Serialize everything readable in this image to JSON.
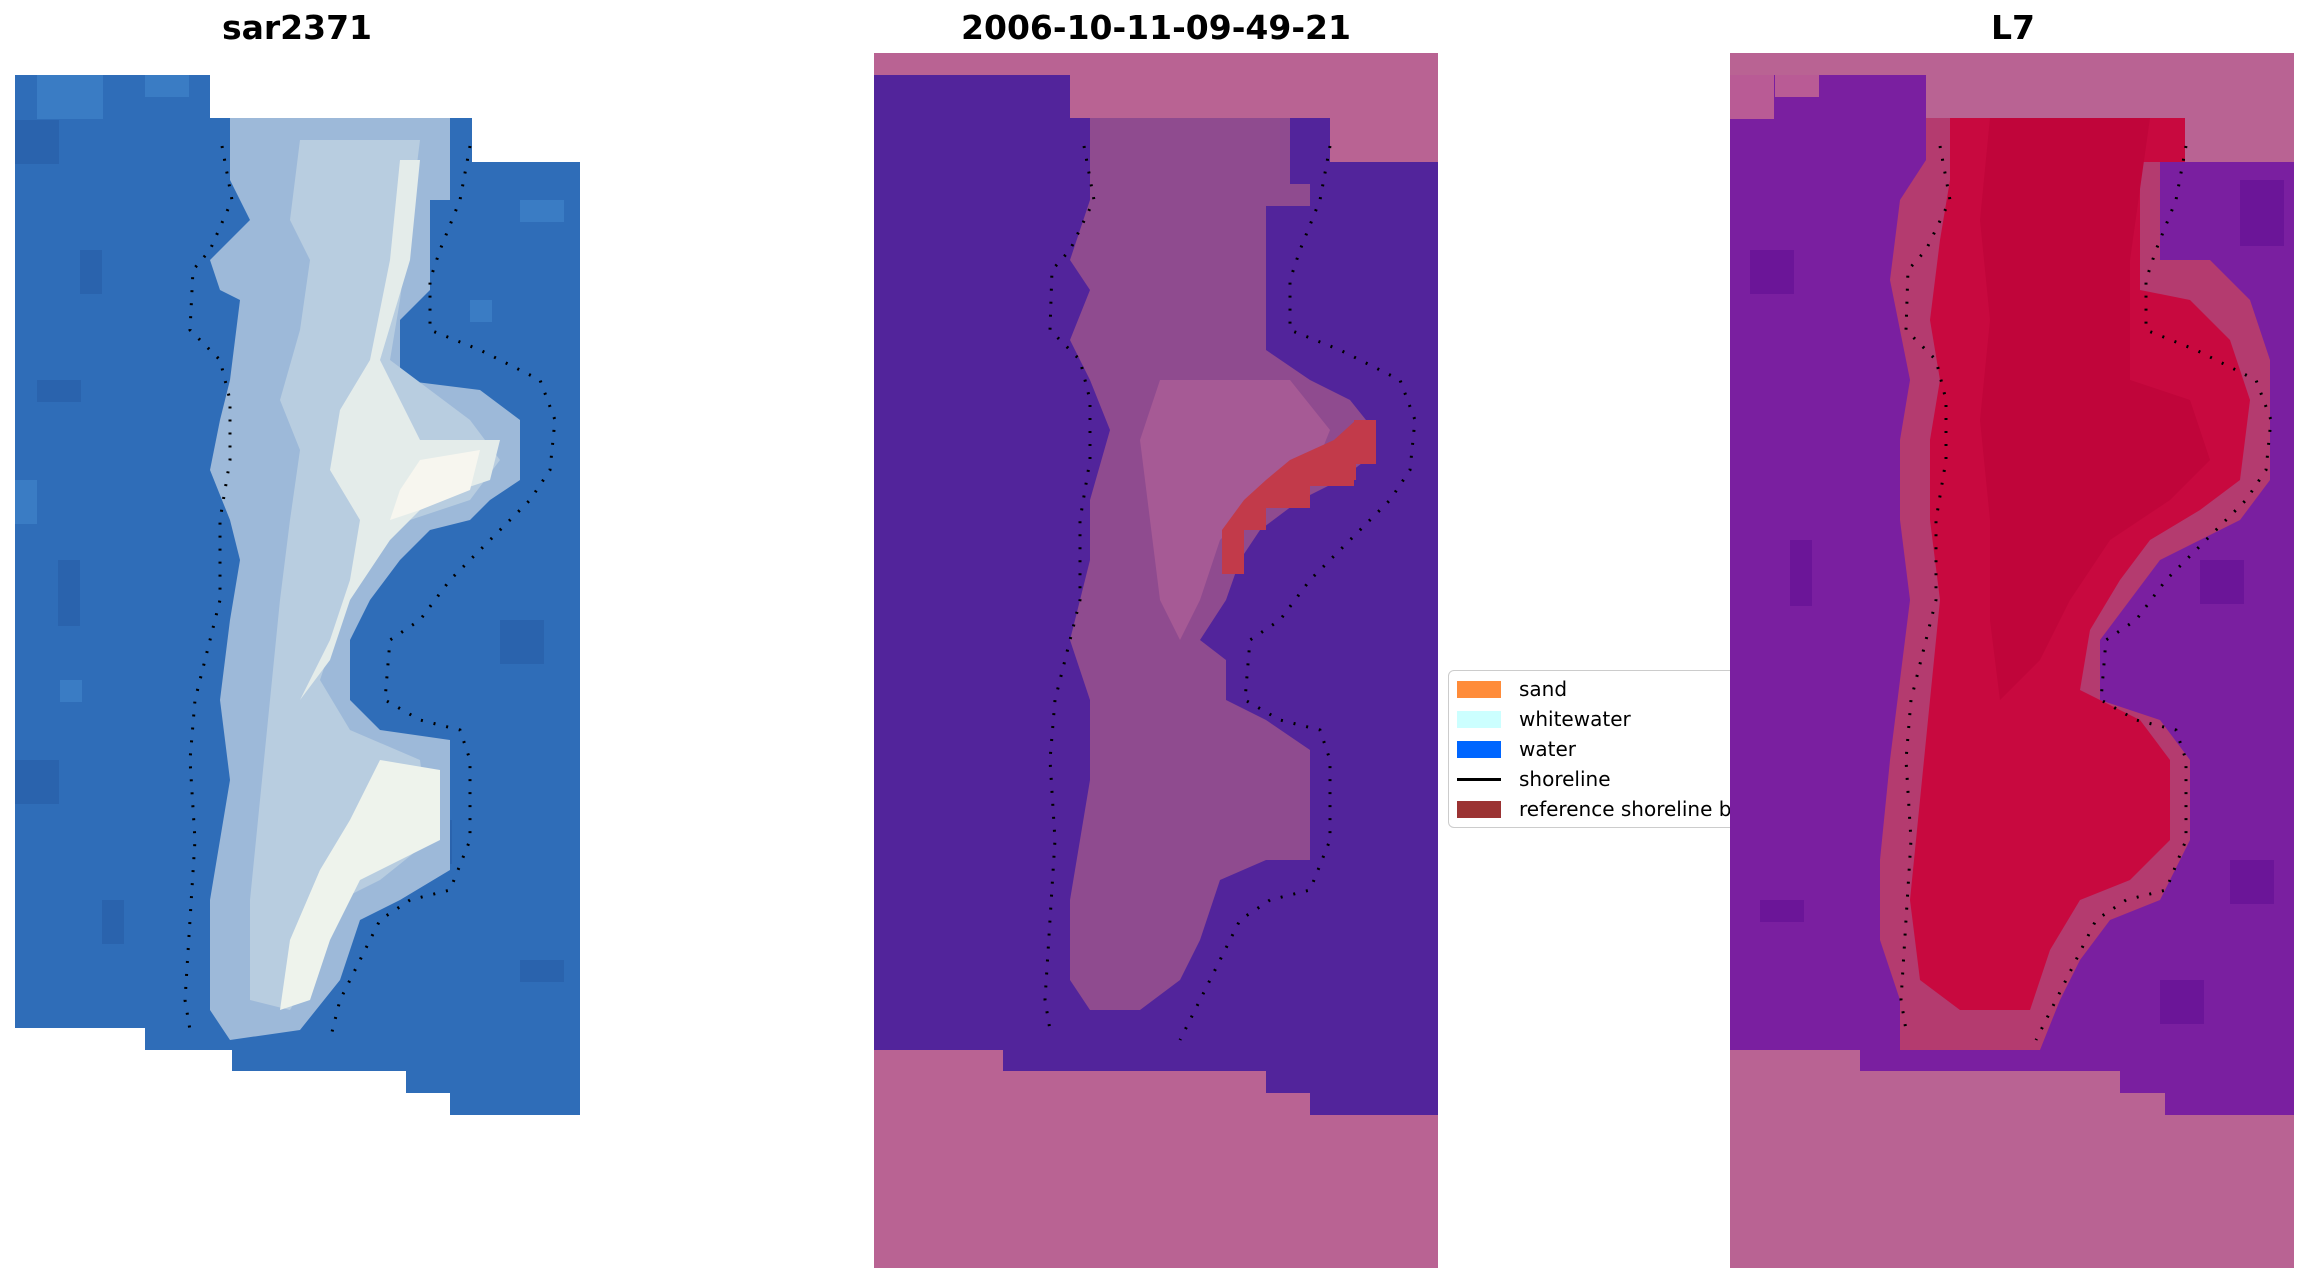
{
  "panels": [
    {
      "title": "sar2371"
    },
    {
      "title": "2006-10-11-09-49-21"
    },
    {
      "title": "L7"
    }
  ],
  "legend": {
    "items": [
      {
        "label": "sand",
        "color": "#ff8c3a",
        "kind": "patch"
      },
      {
        "label": "whitewater",
        "color": "#ccffff",
        "kind": "patch"
      },
      {
        "label": "water",
        "color": "#0066ff",
        "kind": "patch"
      },
      {
        "label": "shoreline",
        "color": "#000000",
        "kind": "line"
      },
      {
        "label": "reference shoreline b",
        "color": "#9b3333",
        "kind": "patch"
      }
    ]
  },
  "colors": {
    "rgb_water": "#2f6db8",
    "rgb_sand": "#b8cde0",
    "rgb_white": "#f2f5f0",
    "class_water": "#52249b",
    "class_sand_overlay": "#8f4b8f",
    "class_nodata": "#b96393",
    "class_ref_band": "#c23a4a",
    "index_water": "#7a1fa0",
    "index_land": "#c8093f",
    "index_nodata": "#b96393"
  }
}
